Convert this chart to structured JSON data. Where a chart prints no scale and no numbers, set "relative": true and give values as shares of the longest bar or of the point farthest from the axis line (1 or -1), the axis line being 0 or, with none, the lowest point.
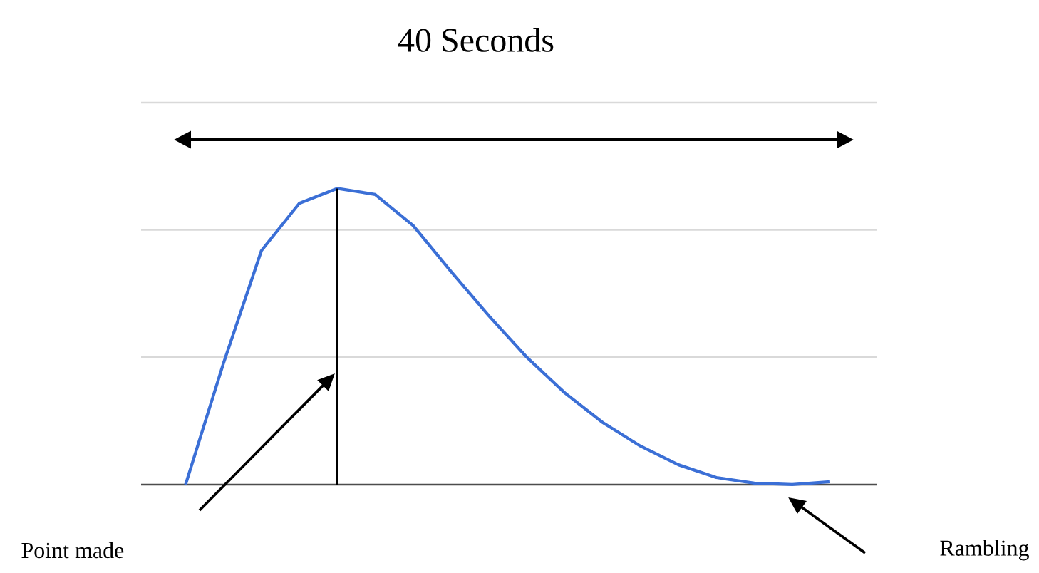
{
  "chart_data": {
    "type": "line",
    "title": "40 Seconds",
    "relative": true,
    "categories": [
      null,
      null,
      null,
      null,
      null,
      null,
      null,
      null,
      null,
      null,
      null,
      null,
      null,
      null,
      null,
      null,
      null,
      null
    ],
    "series": [
      {
        "color": "#3b6fd6",
        "values": [
          0,
          0.41,
          0.79,
          0.95,
          1,
          0.98,
          0.875,
          0.72,
          0.57,
          0.43,
          0.31,
          0.21,
          0.13,
          0.067,
          0.024,
          0.005,
          0,
          0.01
        ]
      }
    ],
    "ref_lines": [
      {
        "axis": "y",
        "value": 0.43,
        "color": "#d9d9d9"
      },
      {
        "axis": "y",
        "value": 0.86,
        "color": "#d9d9d9"
      },
      {
        "axis": "y",
        "value": 1.29,
        "color": "#d9d9d9"
      }
    ],
    "annotations": [
      "Point made",
      "Rambling"
    ]
  }
}
